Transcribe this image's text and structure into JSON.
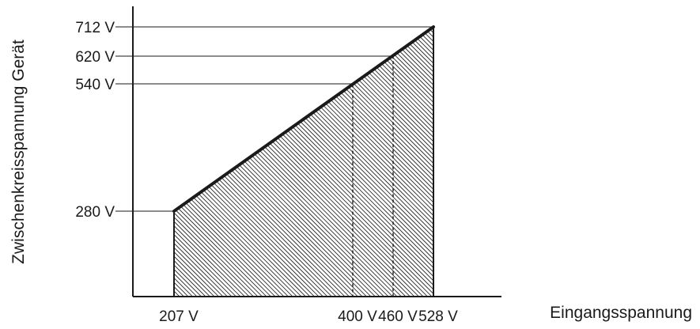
{
  "chart_data": {
    "type": "area",
    "title": "",
    "xlabel": "Eingangsspannung",
    "ylabel": "Zwischenkreisspannung Gerät",
    "x": [
      207,
      528
    ],
    "y": [
      280,
      712
    ],
    "x_ticks": [
      {
        "value": 207,
        "label": "207 V"
      },
      {
        "value": 400,
        "label": "400 V"
      },
      {
        "value": 460,
        "label": "460 V"
      },
      {
        "value": 528,
        "label": "528 V"
      }
    ],
    "y_ticks": [
      {
        "value": 280,
        "label": "280 V"
      },
      {
        "value": 540,
        "label": "540 V"
      },
      {
        "value": 620,
        "label": "620 V"
      },
      {
        "value": 712,
        "label": "712 V"
      }
    ],
    "dashed_markers_x": [
      400,
      460
    ],
    "fill_pattern": "diagonal-hatch",
    "colors": {
      "ink": "#1a1a1a",
      "background": "#ffffff"
    },
    "grid": false,
    "legend": "none"
  }
}
